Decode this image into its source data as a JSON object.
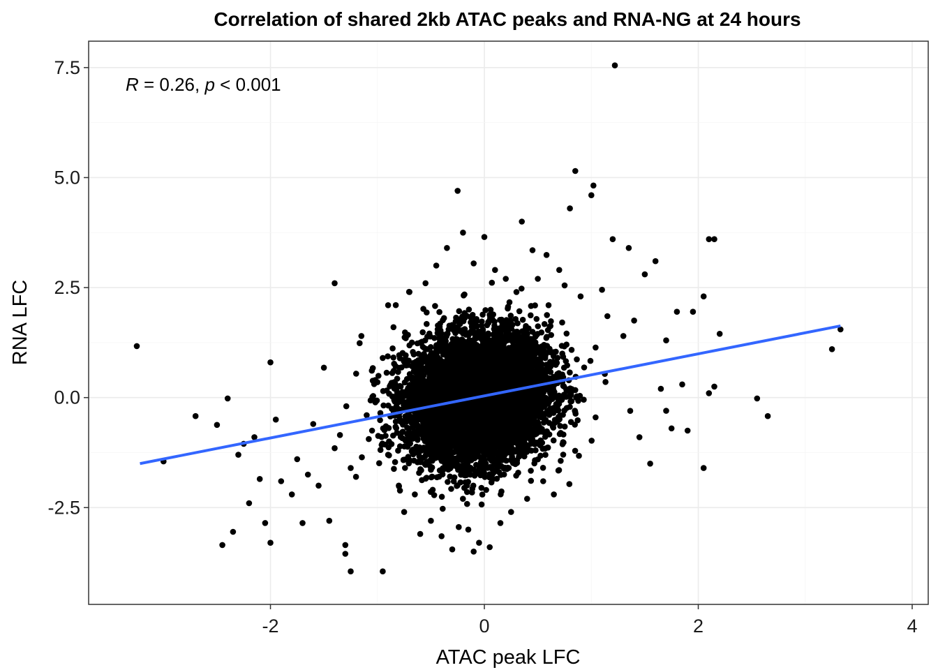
{
  "chart_data": {
    "type": "scatter",
    "title": "Correlation of shared 2kb ATAC peaks and RNA-NG  at 24 hours",
    "xlabel": "ATAC peak LFC",
    "ylabel": "RNA LFC",
    "xlim": [
      -3.7,
      4.15
    ],
    "ylim": [
      -4.7,
      8.1
    ],
    "x_ticks": [
      -2,
      0,
      2,
      4
    ],
    "x_tick_labels": [
      "-2",
      "0",
      "2",
      "4"
    ],
    "y_ticks": [
      -2.5,
      0.0,
      2.5,
      5.0,
      7.5
    ],
    "y_tick_labels": [
      "-2.5",
      "0.0",
      "2.5",
      "5.0",
      "7.5"
    ],
    "grid": true,
    "point_color": "#000000",
    "annotation": {
      "r_symbol": "R",
      "r_text": " = 0.26, ",
      "p_symbol": "p",
      "p_text": " < 0.001"
    },
    "regression_line": {
      "color": "#3366FF",
      "x": [
        -3.22,
        3.33
      ],
      "y": [
        -1.5,
        1.63
      ]
    },
    "series": [
      {
        "values": [
          [
            -3.25,
            1.17
          ],
          [
            -3.0,
            -1.45
          ],
          [
            -2.7,
            -0.42
          ],
          [
            -2.5,
            -0.62
          ],
          [
            -2.45,
            -3.35
          ],
          [
            -2.4,
            -0.02
          ],
          [
            -2.35,
            -3.05
          ],
          [
            -2.3,
            -1.3
          ],
          [
            -2.25,
            -1.05
          ],
          [
            -2.2,
            -2.4
          ],
          [
            -2.15,
            -0.9
          ],
          [
            -2.1,
            -1.85
          ],
          [
            -2.05,
            -2.85
          ],
          [
            -2.0,
            -3.3
          ],
          [
            -1.95,
            -0.5
          ],
          [
            -2.0,
            0.8
          ],
          [
            -1.9,
            -1.9
          ],
          [
            -1.8,
            -2.2
          ],
          [
            -1.75,
            -1.4
          ],
          [
            -1.7,
            -2.85
          ],
          [
            -1.65,
            -1.75
          ],
          [
            -1.6,
            -0.6
          ],
          [
            -1.55,
            -2.0
          ],
          [
            -1.5,
            0.68
          ],
          [
            -1.45,
            -2.8
          ],
          [
            -1.4,
            -1.15
          ],
          [
            -1.35,
            -0.85
          ],
          [
            -1.25,
            -1.6
          ],
          [
            -1.2,
            -1.8
          ],
          [
            -1.15,
            1.4
          ],
          [
            -1.1,
            -0.4
          ],
          [
            -1.05,
            -0.75
          ],
          [
            -1.0,
            0.35
          ],
          [
            -0.95,
            0.9
          ],
          [
            -0.9,
            -1.3
          ],
          [
            -1.3,
            -3.35
          ],
          [
            -1.3,
            -3.55
          ],
          [
            -1.25,
            -3.95
          ],
          [
            -1.4,
            2.6
          ],
          [
            -0.95,
            -3.95
          ],
          [
            -0.9,
            2.1
          ],
          [
            -0.85,
            1.6
          ],
          [
            -0.8,
            -2.0
          ],
          [
            -0.75,
            -2.6
          ],
          [
            -0.7,
            2.4
          ],
          [
            -0.65,
            -2.2
          ],
          [
            -0.6,
            -3.1
          ],
          [
            -0.55,
            2.6
          ],
          [
            -0.5,
            -2.8
          ],
          [
            -0.45,
            3.0
          ],
          [
            -0.4,
            -3.15
          ],
          [
            -0.35,
            3.4
          ],
          [
            -0.3,
            -3.45
          ],
          [
            -0.25,
            4.7
          ],
          [
            -0.2,
            3.75
          ],
          [
            -0.15,
            -3.0
          ],
          [
            -0.1,
            3.05
          ],
          [
            -0.05,
            -3.3
          ],
          [
            0.0,
            3.65
          ],
          [
            0.05,
            -3.4
          ],
          [
            0.1,
            2.9
          ],
          [
            0.15,
            -2.85
          ],
          [
            0.2,
            2.7
          ],
          [
            0.25,
            -2.6
          ],
          [
            0.3,
            2.4
          ],
          [
            0.35,
            4.0
          ],
          [
            0.4,
            -2.3
          ],
          [
            0.45,
            3.35
          ],
          [
            0.5,
            2.7
          ],
          [
            0.55,
            -1.9
          ],
          [
            0.6,
            2.1
          ],
          [
            0.65,
            -2.2
          ],
          [
            0.7,
            2.9
          ],
          [
            0.75,
            2.55
          ],
          [
            0.8,
            4.3
          ],
          [
            0.85,
            5.15
          ],
          [
            0.9,
            2.3
          ],
          [
            1.0,
            4.6
          ],
          [
            1.02,
            4.82
          ],
          [
            1.1,
            2.45
          ],
          [
            1.15,
            1.85
          ],
          [
            1.2,
            3.6
          ],
          [
            1.22,
            7.55
          ],
          [
            1.3,
            1.4
          ],
          [
            1.35,
            3.4
          ],
          [
            1.4,
            1.75
          ],
          [
            1.45,
            -0.9
          ],
          [
            1.5,
            2.8
          ],
          [
            1.55,
            -1.5
          ],
          [
            1.6,
            3.1
          ],
          [
            1.65,
            0.2
          ],
          [
            1.7,
            1.3
          ],
          [
            1.75,
            -0.7
          ],
          [
            1.8,
            1.95
          ],
          [
            1.85,
            0.3
          ],
          [
            1.9,
            -0.75
          ],
          [
            1.95,
            1.95
          ],
          [
            2.05,
            2.3
          ],
          [
            2.05,
            -1.6
          ],
          [
            2.1,
            3.6
          ],
          [
            2.15,
            3.6
          ],
          [
            2.15,
            0.25
          ],
          [
            2.2,
            1.45
          ],
          [
            2.55,
            -0.02
          ],
          [
            2.65,
            -0.42
          ],
          [
            3.25,
            1.1
          ],
          [
            3.33,
            1.55
          ],
          [
            2.1,
            0.1
          ],
          [
            1.7,
            -0.3
          ],
          [
            -0.1,
            -3.5
          ]
        ]
      }
    ],
    "cloud": {
      "center": [
        -0.05,
        0.0
      ],
      "sd": [
        0.33,
        0.72
      ],
      "count": 6500
    }
  }
}
